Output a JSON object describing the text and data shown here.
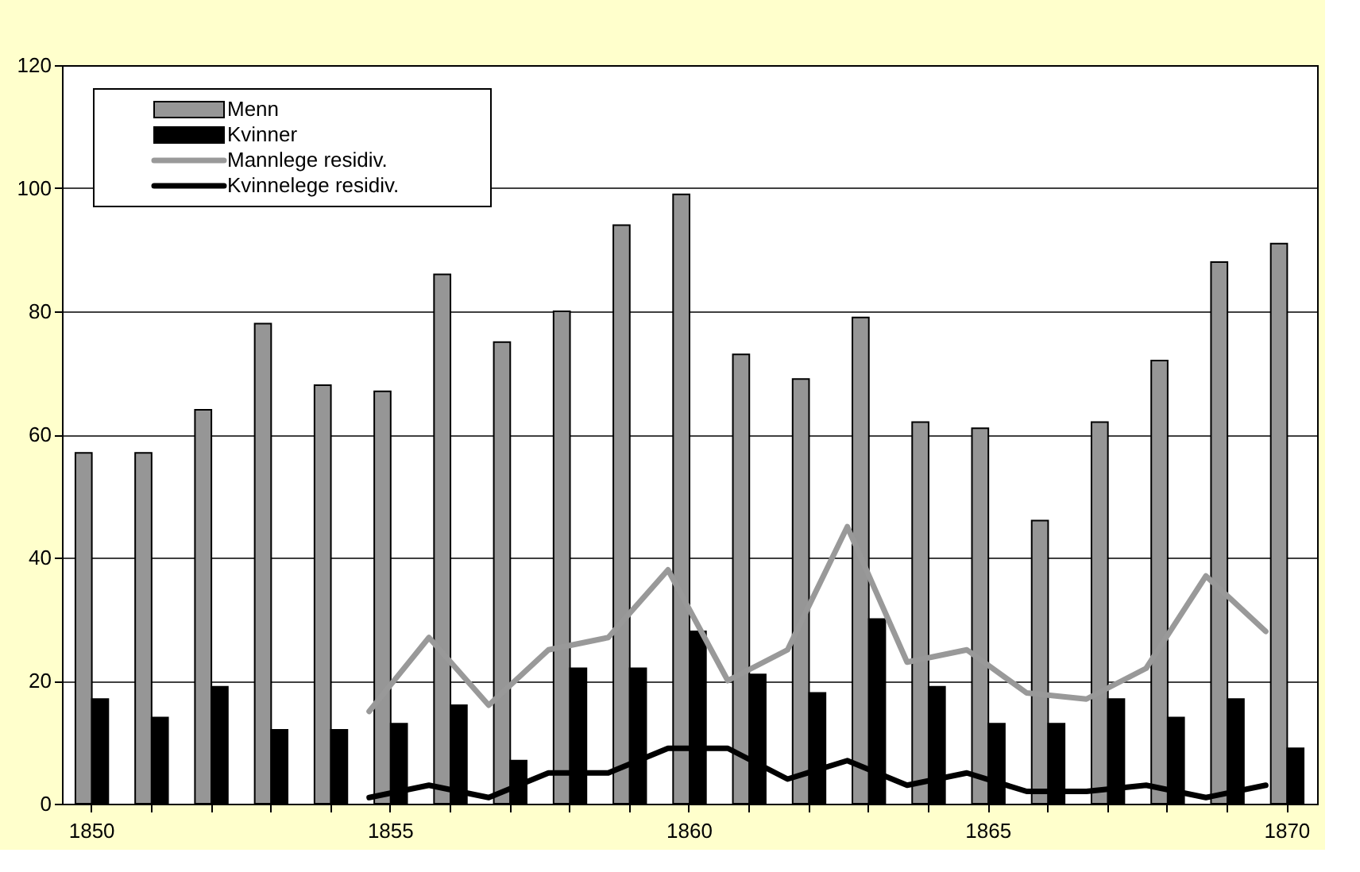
{
  "chart_data": {
    "type": "bar",
    "categories": [
      "1850",
      null,
      null,
      null,
      null,
      "1855",
      null,
      null,
      null,
      null,
      "1860",
      null,
      null,
      null,
      null,
      "1865",
      null,
      null,
      null,
      null,
      "1870"
    ],
    "series": [
      {
        "name": "Menn",
        "color": "#969696",
        "values": [
          57,
          57,
          64,
          78,
          68,
          67,
          86,
          75,
          80,
          94,
          99,
          73,
          69,
          79,
          62,
          61,
          46,
          62,
          72,
          88,
          91
        ]
      },
      {
        "name": "Kvinner",
        "color": "#000000",
        "values": [
          17,
          14,
          19,
          12,
          12,
          13,
          16,
          7,
          22,
          22,
          28,
          21,
          18,
          30,
          19,
          13,
          13,
          17,
          14,
          17,
          9
        ]
      },
      {
        "name": "Mannlege residiv.",
        "type": "line",
        "line_style": "solid",
        "color": "#999999",
        "values": [
          null,
          null,
          null,
          null,
          null,
          15,
          27,
          16,
          25,
          27,
          38,
          20,
          25,
          45,
          23,
          25,
          18,
          17,
          22,
          37,
          28
        ]
      },
      {
        "name": "Kvinnelege residiv.",
        "type": "line",
        "line_style": "solid",
        "color": "#000000",
        "values": [
          null,
          null,
          null,
          null,
          null,
          1,
          3,
          1,
          5,
          5,
          9,
          9,
          4,
          7,
          3,
          5,
          2,
          2,
          3,
          1,
          3
        ]
      }
    ],
    "ylim": [
      0,
      120
    ],
    "yticks": [
      0,
      20,
      40,
      60,
      80,
      100,
      120
    ],
    "grid": "y",
    "legend": "top left"
  }
}
